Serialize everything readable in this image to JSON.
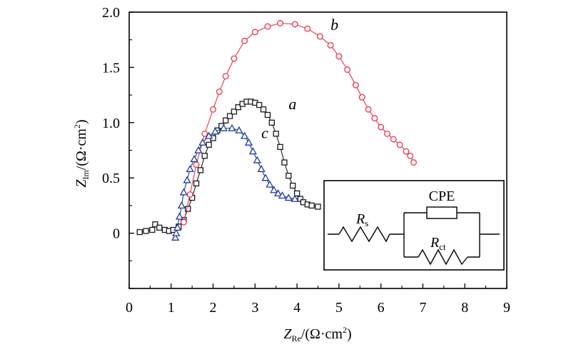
{
  "chart_data": {
    "type": "scatter",
    "xlabel": "Z",
    "xlabel_sub": "Re",
    "xlabel_unit": "/(Ω·cm",
    "xlabel_sup": "2",
    "xlabel_close": ")",
    "ylabel": "Z",
    "ylabel_sub": "Im",
    "ylabel_unit": "/(Ω·cm",
    "ylabel_sup": "2",
    "ylabel_close": ")",
    "xlim": [
      0,
      9
    ],
    "ylim": [
      -0.5,
      2.0
    ],
    "xticks": [
      "0",
      "1",
      "2",
      "3",
      "4",
      "5",
      "6",
      "7",
      "8",
      "9"
    ],
    "yticks": [
      "0",
      "0.5",
      "1.0",
      "1.5",
      "2.0"
    ],
    "grid": false,
    "series": [
      {
        "name": "a",
        "marker": "square",
        "color": "#1a1a1a",
        "line_color": "#1a1a1a",
        "points": [
          [
            0.25,
            0.01
          ],
          [
            0.4,
            0.02
          ],
          [
            0.55,
            0.03
          ],
          [
            0.62,
            0.08
          ],
          [
            0.72,
            0.05
          ],
          [
            0.85,
            0.03
          ],
          [
            0.95,
            0.02
          ],
          [
            1.05,
            0.03
          ],
          [
            1.18,
            0.06
          ],
          [
            1.3,
            0.12
          ],
          [
            1.4,
            0.22
          ],
          [
            1.5,
            0.32
          ],
          [
            1.6,
            0.45
          ],
          [
            1.7,
            0.57
          ],
          [
            1.8,
            0.7
          ],
          [
            1.9,
            0.8
          ],
          [
            2.0,
            0.86
          ],
          [
            2.1,
            0.93
          ],
          [
            2.2,
            0.97
          ],
          [
            2.3,
            1.02
          ],
          [
            2.4,
            1.06
          ],
          [
            2.5,
            1.1
          ],
          [
            2.6,
            1.14
          ],
          [
            2.7,
            1.17
          ],
          [
            2.8,
            1.19
          ],
          [
            2.9,
            1.19
          ],
          [
            3.0,
            1.18
          ],
          [
            3.1,
            1.16
          ],
          [
            3.2,
            1.12
          ],
          [
            3.3,
            1.07
          ],
          [
            3.4,
            1.0
          ],
          [
            3.5,
            0.9
          ],
          [
            3.6,
            0.78
          ],
          [
            3.7,
            0.64
          ],
          [
            3.8,
            0.52
          ],
          [
            3.9,
            0.43
          ],
          [
            4.0,
            0.36
          ],
          [
            4.08,
            0.31
          ],
          [
            4.15,
            0.28
          ],
          [
            4.25,
            0.26
          ],
          [
            4.35,
            0.25
          ],
          [
            4.5,
            0.24
          ]
        ]
      },
      {
        "name": "b",
        "marker": "circle",
        "color": "#e8334a",
        "line_color": "#e8334a",
        "points": [
          [
            1.3,
            0.1
          ],
          [
            1.45,
            0.35
          ],
          [
            1.6,
            0.62
          ],
          [
            1.8,
            0.9
          ],
          [
            2.0,
            1.12
          ],
          [
            2.15,
            1.28
          ],
          [
            2.3,
            1.42
          ],
          [
            2.5,
            1.58
          ],
          [
            2.75,
            1.74
          ],
          [
            3.0,
            1.82
          ],
          [
            3.3,
            1.87
          ],
          [
            3.6,
            1.9
          ],
          [
            3.95,
            1.89
          ],
          [
            4.25,
            1.85
          ],
          [
            4.55,
            1.78
          ],
          [
            4.8,
            1.7
          ],
          [
            5.0,
            1.6
          ],
          [
            5.2,
            1.48
          ],
          [
            5.4,
            1.34
          ],
          [
            5.55,
            1.23
          ],
          [
            5.7,
            1.12
          ],
          [
            5.85,
            1.04
          ],
          [
            6.0,
            0.96
          ],
          [
            6.15,
            0.9
          ],
          [
            6.3,
            0.85
          ],
          [
            6.45,
            0.8
          ],
          [
            6.6,
            0.74
          ],
          [
            6.7,
            0.7
          ],
          [
            6.78,
            0.64
          ]
        ]
      },
      {
        "name": "c",
        "marker": "triangle",
        "color": "#1c3c9c",
        "line_color": "#1c3c9c",
        "points": [
          [
            1.1,
            -0.04
          ],
          [
            1.12,
            0.0
          ],
          [
            1.15,
            0.05
          ],
          [
            1.2,
            0.15
          ],
          [
            1.25,
            0.25
          ],
          [
            1.3,
            0.37
          ],
          [
            1.38,
            0.48
          ],
          [
            1.45,
            0.58
          ],
          [
            1.55,
            0.67
          ],
          [
            1.65,
            0.75
          ],
          [
            1.75,
            0.82
          ],
          [
            1.9,
            0.88
          ],
          [
            2.05,
            0.92
          ],
          [
            2.25,
            0.95
          ],
          [
            2.45,
            0.95
          ],
          [
            2.62,
            0.93
          ],
          [
            2.75,
            0.88
          ],
          [
            2.85,
            0.82
          ],
          [
            2.95,
            0.74
          ],
          [
            3.05,
            0.66
          ],
          [
            3.15,
            0.58
          ],
          [
            3.25,
            0.5
          ],
          [
            3.35,
            0.44
          ],
          [
            3.45,
            0.39
          ],
          [
            3.55,
            0.36
          ],
          [
            3.65,
            0.34
          ],
          [
            3.8,
            0.32
          ],
          [
            3.95,
            0.31
          ]
        ]
      }
    ],
    "series_labels": [
      {
        "text": "a",
        "x": 3.8,
        "y": 1.12
      },
      {
        "text": "b",
        "x": 4.8,
        "y": 1.84
      },
      {
        "text": "c",
        "x": 3.15,
        "y": 0.86
      }
    ],
    "inset": {
      "label_rs": "R",
      "label_rs_sub": "s",
      "label_cpe": "CPE",
      "label_rct": "R",
      "label_rct_sub": "ct"
    }
  }
}
